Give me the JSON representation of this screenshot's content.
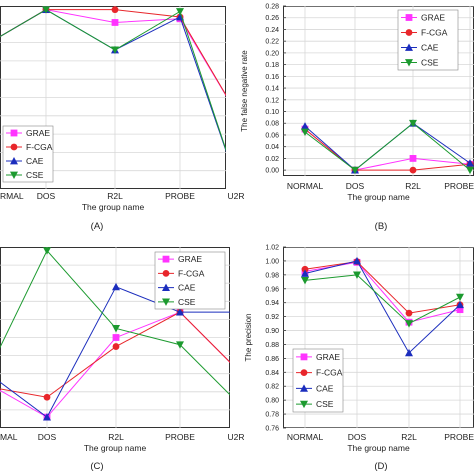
{
  "chart_data": [
    {
      "panel_label": "(A)",
      "type": "line",
      "categories": [
        "NORMAL",
        "DOS",
        "R2L",
        "PROBE",
        "U2R"
      ],
      "visible_tick_labels": [
        "RMAL",
        "DOS",
        "R2L",
        "PROBE",
        "U2R"
      ],
      "xlabel": "The group name",
      "ylabel": "",
      "ylim": [
        0,
        1
      ],
      "show_y_ticks": false,
      "grid": true,
      "legend": "bottom-left",
      "series": [
        {
          "name": "GRAE",
          "color": "#ff33ff",
          "marker": "square",
          "values": [
            0.82,
            0.98,
            0.91,
            0.93,
            0.42
          ]
        },
        {
          "name": "F-CGA",
          "color": "#e8262b",
          "marker": "circle",
          "values": [
            0.82,
            0.98,
            0.98,
            0.94,
            0.42
          ]
        },
        {
          "name": "CAE",
          "color": "#1b2dbd",
          "marker": "triangle",
          "values": [
            0.82,
            0.98,
            0.76,
            0.94,
            0.05
          ]
        },
        {
          "name": "CSE",
          "color": "#1c9a2f",
          "marker": "triangle-down",
          "values": [
            0.82,
            0.98,
            0.76,
            0.97,
            0.05
          ]
        }
      ]
    },
    {
      "panel_label": "(B)",
      "type": "line",
      "categories": [
        "NORMAL",
        "DOS",
        "R2L",
        "PROBE"
      ],
      "visible_tick_labels": [
        "NORMAL",
        "DOS",
        "R2L",
        "PROBE"
      ],
      "xlabel": "The group name",
      "ylabel": "The false negative rate",
      "ylim": [
        -0.01,
        0.28
      ],
      "yticks": [
        "0.00",
        "0.02",
        "0.04",
        "0.06",
        "0.08",
        "0.10",
        "0.12",
        "0.14",
        "0.16",
        "0.18",
        "0.20",
        "0.22",
        "0.24",
        "0.26",
        "0.28"
      ],
      "show_y_ticks": true,
      "grid": true,
      "legend": "top-right",
      "series": [
        {
          "name": "GRAE",
          "color": "#ff33ff",
          "marker": "square",
          "values": [
            0.07,
            0.0,
            0.02,
            0.01
          ]
        },
        {
          "name": "F-CGA",
          "color": "#e8262b",
          "marker": "circle",
          "values": [
            0.07,
            0.0,
            0.0,
            0.01
          ]
        },
        {
          "name": "CAE",
          "color": "#1b2dbd",
          "marker": "triangle",
          "values": [
            0.075,
            0.0,
            0.08,
            0.012
          ]
        },
        {
          "name": "CSE",
          "color": "#1c9a2f",
          "marker": "triangle-down",
          "values": [
            0.065,
            0.0,
            0.08,
            0.0
          ]
        }
      ]
    },
    {
      "panel_label": "(C)",
      "type": "line",
      "categories": [
        "NORMAL",
        "DOS",
        "R2L",
        "PROBE",
        "U2R"
      ],
      "visible_tick_labels": [
        "MAL",
        "DOS",
        "R2L",
        "PROBE",
        "U2R"
      ],
      "xlabel": "The group name",
      "ylabel": "",
      "ylim": [
        0,
        1
      ],
      "show_y_ticks": false,
      "grid": true,
      "legend": "top-right",
      "series": [
        {
          "name": "GRAE",
          "color": "#ff33ff",
          "marker": "square",
          "values": [
            0.22,
            0.06,
            0.5,
            0.64,
            0.33
          ]
        },
        {
          "name": "F-CGA",
          "color": "#e8262b",
          "marker": "circle",
          "values": [
            0.22,
            0.17,
            0.45,
            0.64,
            0.33
          ]
        },
        {
          "name": "CAE",
          "color": "#1b2dbd",
          "marker": "triangle",
          "values": [
            0.27,
            0.06,
            0.78,
            0.64,
            0.64
          ]
        },
        {
          "name": "CSE",
          "color": "#1c9a2f",
          "marker": "triangle-down",
          "values": [
            0.4,
            0.98,
            0.55,
            0.46,
            0.15
          ]
        }
      ]
    },
    {
      "panel_label": "(D)",
      "type": "line",
      "categories": [
        "NORMAL",
        "DOS",
        "R2L",
        "PROBE"
      ],
      "visible_tick_labels": [
        "NORMAL",
        "DOS",
        "R2L",
        "PROBE"
      ],
      "xlabel": "The group name",
      "ylabel": "The precision",
      "ylim": [
        0.76,
        1.02
      ],
      "yticks": [
        "0.76",
        "0.78",
        "0.80",
        "0.82",
        "0.84",
        "0.86",
        "0.88",
        "0.90",
        "0.92",
        "0.94",
        "0.96",
        "0.98",
        "1.00",
        "1.02"
      ],
      "show_y_ticks": true,
      "grid": true,
      "legend": "bottom-right",
      "series": [
        {
          "name": "GRAE",
          "color": "#ff33ff",
          "marker": "square",
          "values": [
            0.985,
            0.998,
            0.912,
            0.93
          ]
        },
        {
          "name": "F-CGA",
          "color": "#e8262b",
          "marker": "circle",
          "values": [
            0.988,
            0.999,
            0.925,
            0.937
          ]
        },
        {
          "name": "CAE",
          "color": "#1b2dbd",
          "marker": "triangle",
          "values": [
            0.982,
            1.0,
            0.868,
            0.937
          ]
        },
        {
          "name": "CSE",
          "color": "#1c9a2f",
          "marker": "triangle-down",
          "values": [
            0.972,
            0.98,
            0.91,
            0.948
          ]
        }
      ]
    }
  ]
}
